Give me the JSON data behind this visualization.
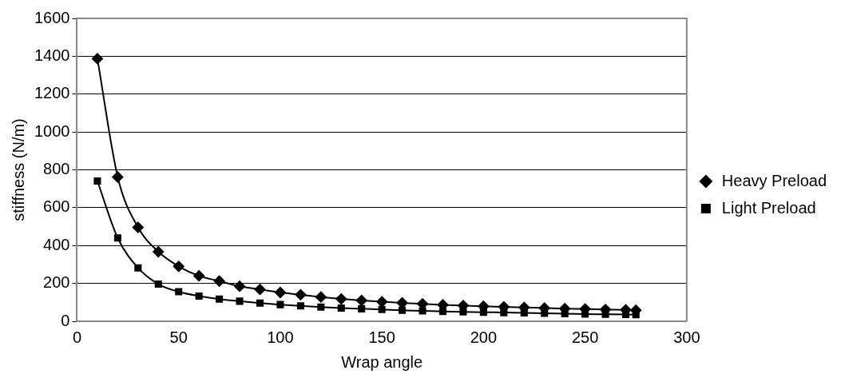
{
  "chart_data": {
    "type": "line",
    "xlabel": "Wrap angle",
    "ylabel": "stiffness (N/m)",
    "x": [
      10,
      20,
      30,
      40,
      50,
      60,
      70,
      80,
      90,
      100,
      110,
      120,
      130,
      140,
      150,
      160,
      170,
      180,
      190,
      200,
      210,
      220,
      230,
      240,
      250,
      260,
      270,
      275
    ],
    "series": [
      {
        "name": "Heavy Preload",
        "color": "#000000",
        "marker": "diamond",
        "values": [
          1387,
          762,
          496,
          367,
          290,
          240,
          212,
          185,
          168,
          152,
          140,
          128,
          118,
          110,
          103,
          97,
          92,
          87,
          83,
          79,
          76,
          73,
          70,
          67,
          65,
          62,
          60,
          58
        ]
      },
      {
        "name": "Light Preload",
        "color": "#000000",
        "marker": "square",
        "values": [
          741,
          440,
          282,
          196,
          156,
          133,
          117,
          106,
          96,
          88,
          81,
          75,
          70,
          66,
          62,
          58,
          55,
          52,
          50,
          48,
          46,
          44,
          42,
          40,
          38,
          37,
          36,
          35
        ]
      }
    ],
    "xlim": [
      0,
      300
    ],
    "xticks": [
      0,
      50,
      100,
      150,
      200,
      250,
      300
    ],
    "ylim": [
      0,
      1600
    ],
    "yticks": [
      0,
      200,
      400,
      600,
      800,
      1000,
      1200,
      1400,
      1600
    ],
    "grid": "y",
    "legend": "right",
    "line_style": "solid"
  }
}
